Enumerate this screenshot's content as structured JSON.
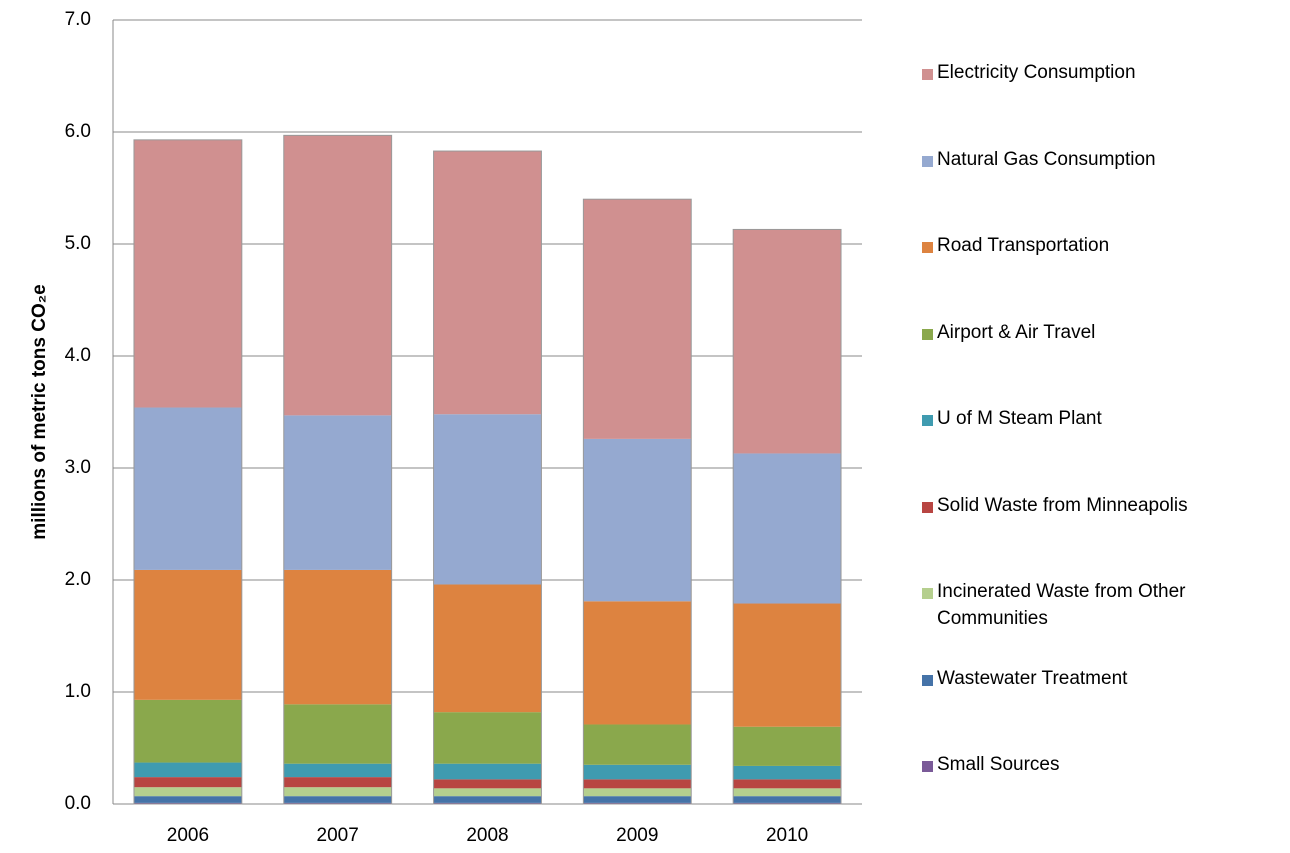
{
  "chart_data": {
    "type": "stacked_bar",
    "y_label": "millions of metric tons CO₂e",
    "categories": [
      "2006",
      "2007",
      "2008",
      "2009",
      "2010"
    ],
    "series": [
      {
        "name": "Electricity Consumption",
        "color": "#d09090",
        "values": [
          2.39,
          2.5,
          2.35,
          2.14,
          2.0
        ]
      },
      {
        "name": "Natural Gas Consumption",
        "color": "#95a9d0",
        "values": [
          1.45,
          1.38,
          1.52,
          1.45,
          1.34
        ]
      },
      {
        "name": "Road Transportation",
        "color": "#dd8340",
        "values": [
          1.16,
          1.2,
          1.14,
          1.1,
          1.1
        ]
      },
      {
        "name": "Airport & Air Travel",
        "color": "#8aa84c",
        "values": [
          0.56,
          0.53,
          0.46,
          0.36,
          0.35
        ]
      },
      {
        "name": "U of M Steam Plant",
        "color": "#3f9bb0",
        "values": [
          0.13,
          0.12,
          0.14,
          0.13,
          0.12
        ]
      },
      {
        "name": "Solid Waste from Minneapolis",
        "color": "#b84542",
        "values": [
          0.09,
          0.09,
          0.08,
          0.08,
          0.08
        ]
      },
      {
        "name": "Incinerated Waste from Other Communities",
        "color": "#b5cf8e",
        "values": [
          0.08,
          0.08,
          0.07,
          0.07,
          0.07
        ]
      },
      {
        "name": "Wastewater Treatment",
        "color": "#4573a8",
        "values": [
          0.06,
          0.06,
          0.06,
          0.06,
          0.06
        ]
      },
      {
        "name": "Small Sources",
        "color": "#7a5a98",
        "values": [
          0.01,
          0.01,
          0.01,
          0.01,
          0.01
        ]
      }
    ],
    "ylim": [
      0,
      7
    ],
    "yticks": [
      {
        "value": 0,
        "label": "0.0"
      },
      {
        "value": 1,
        "label": "1.0"
      },
      {
        "value": 2,
        "label": "2.0"
      },
      {
        "value": 3,
        "label": "3.0"
      },
      {
        "value": 4,
        "label": "4.0"
      },
      {
        "value": 5,
        "label": "5.0"
      },
      {
        "value": 6,
        "label": "6.0"
      },
      {
        "value": 7,
        "label": "7.0"
      }
    ],
    "grid": true,
    "legend": "right"
  }
}
